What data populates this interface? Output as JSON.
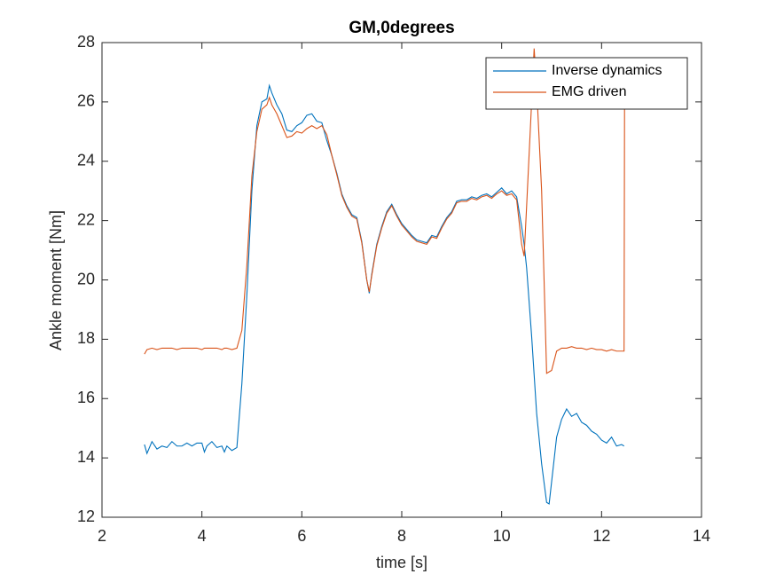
{
  "chart_data": {
    "type": "line",
    "title": "GM,0degrees",
    "x_label": "time  [s]",
    "y_label": "Ankle moment [Nm]",
    "xlim": [
      2,
      14
    ],
    "xticks": [
      2,
      4,
      6,
      8,
      10,
      12,
      14
    ],
    "ylim": [
      12,
      28
    ],
    "yticks": [
      12,
      14,
      16,
      18,
      20,
      22,
      24,
      26,
      28
    ],
    "legend": "top-right",
    "grid": false,
    "x": [
      2.85,
      2.9,
      3.0,
      3.1,
      3.2,
      3.3,
      3.4,
      3.5,
      3.6,
      3.7,
      3.8,
      3.9,
      4.0,
      4.05,
      4.1,
      4.2,
      4.3,
      4.4,
      4.45,
      4.5,
      4.6,
      4.7,
      4.8,
      4.9,
      5.0,
      5.1,
      5.2,
      5.3,
      5.35,
      5.4,
      5.5,
      5.6,
      5.7,
      5.8,
      5.9,
      6.0,
      6.1,
      6.2,
      6.3,
      6.4,
      6.5,
      6.6,
      6.7,
      6.8,
      6.9,
      7.0,
      7.1,
      7.2,
      7.3,
      7.35,
      7.4,
      7.5,
      7.6,
      7.7,
      7.8,
      7.9,
      8.0,
      8.1,
      8.2,
      8.3,
      8.4,
      8.5,
      8.6,
      8.7,
      8.8,
      8.9,
      9.0,
      9.1,
      9.2,
      9.3,
      9.4,
      9.5,
      9.6,
      9.7,
      9.8,
      9.9,
      10.0,
      10.1,
      10.2,
      10.3,
      10.4,
      10.45,
      10.5,
      10.6,
      10.65,
      10.7,
      10.8,
      10.9,
      10.95,
      11.0,
      11.1,
      11.2,
      11.3,
      11.4,
      11.5,
      11.6,
      11.7,
      11.8,
      11.9,
      12.0,
      12.1,
      12.2,
      12.3,
      12.4,
      12.45,
      12.46
    ],
    "series": [
      {
        "name": "Inverse dynamics",
        "color": "#0072BD",
        "values": [
          14.45,
          14.15,
          14.55,
          14.3,
          14.4,
          14.35,
          14.55,
          14.4,
          14.4,
          14.5,
          14.4,
          14.5,
          14.5,
          14.2,
          14.4,
          14.55,
          14.35,
          14.4,
          14.2,
          14.4,
          14.25,
          14.35,
          16.5,
          19.5,
          23.0,
          25.2,
          26.0,
          26.1,
          26.55,
          26.3,
          25.9,
          25.6,
          25.05,
          25.0,
          25.2,
          25.3,
          25.55,
          25.6,
          25.35,
          25.3,
          24.7,
          24.2,
          23.6,
          22.9,
          22.5,
          22.2,
          22.1,
          21.3,
          20.0,
          19.55,
          20.2,
          21.2,
          21.8,
          22.3,
          22.55,
          22.2,
          21.9,
          21.7,
          21.5,
          21.35,
          21.3,
          21.25,
          21.5,
          21.45,
          21.8,
          22.1,
          22.3,
          22.65,
          22.7,
          22.7,
          22.8,
          22.75,
          22.85,
          22.9,
          22.8,
          22.95,
          23.1,
          22.9,
          23.0,
          22.8,
          21.8,
          21.2,
          20.4,
          18.1,
          16.8,
          15.5,
          13.8,
          12.5,
          12.45,
          13.2,
          14.7,
          15.3,
          15.65,
          15.4,
          15.5,
          15.2,
          15.1,
          14.9,
          14.8,
          14.6,
          14.5,
          14.7,
          14.4,
          14.45,
          14.4,
          null
        ]
      },
      {
        "name": "EMG driven",
        "color": "#D95319",
        "values": [
          17.5,
          17.65,
          17.7,
          17.65,
          17.7,
          17.7,
          17.7,
          17.65,
          17.7,
          17.7,
          17.7,
          17.7,
          17.65,
          17.7,
          17.7,
          17.7,
          17.7,
          17.65,
          17.7,
          17.7,
          17.65,
          17.7,
          18.3,
          20.5,
          23.5,
          25.0,
          25.75,
          25.9,
          26.15,
          25.9,
          25.6,
          25.2,
          24.8,
          24.85,
          25.0,
          24.95,
          25.1,
          25.2,
          25.1,
          25.2,
          24.9,
          24.2,
          23.55,
          22.85,
          22.45,
          22.15,
          22.05,
          21.25,
          20.0,
          19.6,
          20.15,
          21.15,
          21.75,
          22.25,
          22.5,
          22.15,
          21.85,
          21.65,
          21.45,
          21.3,
          21.25,
          21.2,
          21.45,
          21.4,
          21.75,
          22.05,
          22.25,
          22.6,
          22.65,
          22.65,
          22.75,
          22.7,
          22.8,
          22.85,
          22.75,
          22.9,
          23.0,
          22.85,
          22.9,
          22.7,
          21.2,
          20.8,
          22.5,
          26.0,
          27.8,
          26.5,
          23.0,
          16.85,
          16.9,
          16.95,
          17.6,
          17.7,
          17.7,
          17.75,
          17.7,
          17.7,
          17.65,
          17.7,
          17.65,
          17.65,
          17.6,
          17.65,
          17.6,
          17.6,
          17.6,
          26.1
        ]
      }
    ]
  }
}
